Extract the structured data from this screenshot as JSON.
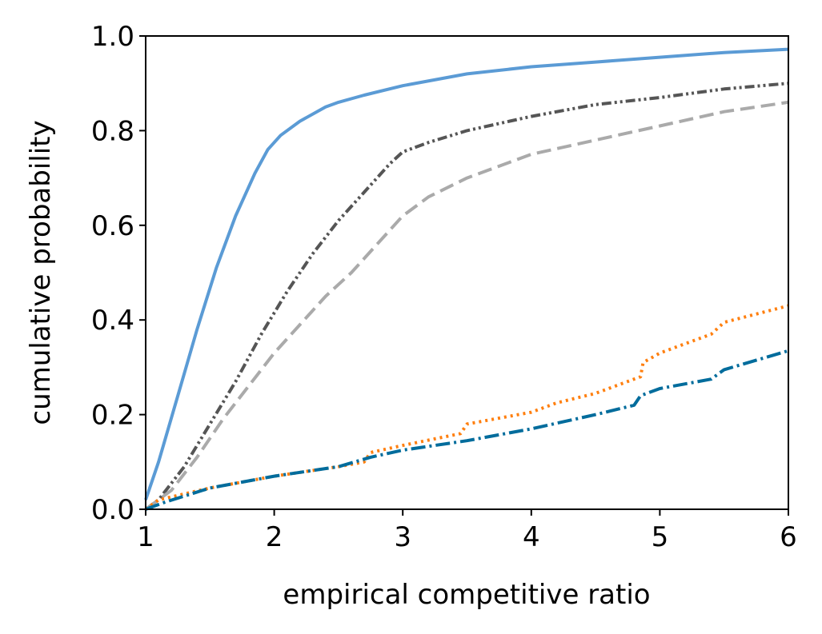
{
  "chart_data": {
    "type": "line",
    "title": "",
    "xlabel": "empirical competitive ratio",
    "ylabel": "cumulative probability",
    "xlim": [
      1,
      6
    ],
    "ylim": [
      0,
      1
    ],
    "xticks": [
      1,
      2,
      3,
      4,
      5,
      6
    ],
    "xtick_labels": [
      "1",
      "2",
      "3",
      "4",
      "5",
      "6"
    ],
    "yticks": [
      0,
      0.2,
      0.4,
      0.6,
      0.8,
      1.0
    ],
    "ytick_labels": [
      "0.0",
      "0.2",
      "0.4",
      "0.6",
      "0.8",
      "1.0"
    ],
    "grid": false,
    "legend": "none",
    "series": [
      {
        "name": "solid-blue",
        "color": "#5b9bd5",
        "dash": "solid",
        "x": [
          1.0,
          1.1,
          1.25,
          1.4,
          1.55,
          1.7,
          1.85,
          1.95,
          2.05,
          2.2,
          2.4,
          2.5,
          2.7,
          3.0,
          3.5,
          4.0,
          4.5,
          5.0,
          5.5,
          6.0
        ],
        "y": [
          0.02,
          0.1,
          0.24,
          0.38,
          0.51,
          0.62,
          0.71,
          0.76,
          0.79,
          0.82,
          0.85,
          0.86,
          0.875,
          0.895,
          0.92,
          0.935,
          0.945,
          0.955,
          0.965,
          0.972
        ]
      },
      {
        "name": "dash-dot-dot-darkgray",
        "color": "#555555",
        "dash": "dashdotdot",
        "x": [
          1.0,
          1.1,
          1.3,
          1.5,
          1.7,
          1.9,
          2.1,
          2.3,
          2.5,
          2.7,
          2.9,
          3.0,
          3.2,
          3.5,
          4.0,
          4.5,
          5.0,
          5.5,
          6.0
        ],
        "y": [
          0.0,
          0.02,
          0.09,
          0.18,
          0.27,
          0.37,
          0.46,
          0.54,
          0.61,
          0.67,
          0.73,
          0.755,
          0.775,
          0.8,
          0.83,
          0.855,
          0.87,
          0.888,
          0.9
        ]
      },
      {
        "name": "dashed-lightgray",
        "color": "#aaaaaa",
        "dash": "dashed",
        "x": [
          1.0,
          1.2,
          1.4,
          1.6,
          1.8,
          2.0,
          2.2,
          2.4,
          2.6,
          2.8,
          3.0,
          3.2,
          3.5,
          4.0,
          4.5,
          5.0,
          5.5,
          6.0
        ],
        "y": [
          0.0,
          0.04,
          0.11,
          0.19,
          0.26,
          0.33,
          0.39,
          0.45,
          0.5,
          0.56,
          0.62,
          0.66,
          0.7,
          0.75,
          0.78,
          0.81,
          0.84,
          0.86
        ]
      },
      {
        "name": "dotted-orange",
        "color": "#ff7f0e",
        "dash": "dotted",
        "x": [
          1.0,
          1.1,
          1.5,
          2.0,
          2.5,
          2.7,
          2.75,
          3.0,
          3.45,
          3.5,
          4.0,
          4.2,
          4.5,
          4.85,
          4.87,
          5.0,
          5.4,
          5.5,
          6.0
        ],
        "y": [
          0.0,
          0.02,
          0.045,
          0.07,
          0.09,
          0.1,
          0.12,
          0.135,
          0.16,
          0.18,
          0.205,
          0.225,
          0.245,
          0.28,
          0.31,
          0.33,
          0.37,
          0.395,
          0.43
        ]
      },
      {
        "name": "dash-dot-teal",
        "color": "#006c9c",
        "dash": "dashdot",
        "x": [
          1.0,
          1.15,
          1.5,
          2.0,
          2.5,
          2.75,
          3.0,
          3.5,
          4.0,
          4.5,
          4.8,
          4.85,
          5.0,
          5.4,
          5.5,
          6.0
        ],
        "y": [
          0.0,
          0.015,
          0.045,
          0.07,
          0.09,
          0.11,
          0.125,
          0.145,
          0.17,
          0.2,
          0.22,
          0.24,
          0.255,
          0.275,
          0.295,
          0.335
        ]
      }
    ]
  }
}
